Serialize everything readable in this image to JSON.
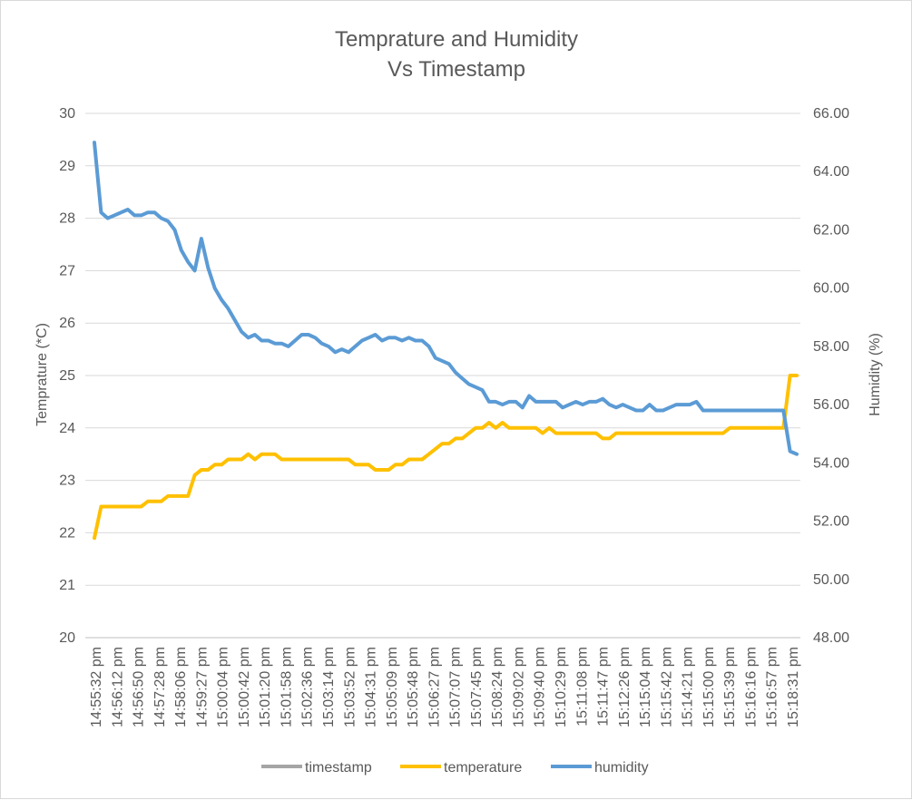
{
  "chart_data": {
    "type": "line",
    "title": [
      "Temprature and Humidity",
      "Vs Timestamp"
    ],
    "ylabel_left": "Temprature (*C)",
    "ylabel_right": "Humidity (%)",
    "ylim_left": [
      20,
      30
    ],
    "ylim_right": [
      48,
      66
    ],
    "yticks_left": [
      "20",
      "21",
      "22",
      "23",
      "24",
      "25",
      "26",
      "27",
      "28",
      "29",
      "30"
    ],
    "yticks_right": [
      "48.00",
      "50.00",
      "52.00",
      "54.00",
      "56.00",
      "58.00",
      "60.00",
      "62.00",
      "64.00",
      "66.00"
    ],
    "xtick_labels": [
      "14:55:32 pm",
      "14:56:12 pm",
      "14:56:50 pm",
      "14:57:28 pm",
      "14:58:06 pm",
      "14:59:27 pm",
      "15:00:04 pm",
      "15:00:42 pm",
      "15:01:20 pm",
      "15:01:58 pm",
      "15:02:36 pm",
      "15:03:14 pm",
      "15:03:52 pm",
      "15:04:31 pm",
      "15:05:09 pm",
      "15:05:48 pm",
      "15:06:27 pm",
      "15:07:07 pm",
      "15:07:45 pm",
      "15:08:24 pm",
      "15:09:02 pm",
      "15:09:40 pm",
      "15:10:29 pm",
      "15:11:08 pm",
      "15:11:47 pm",
      "15:12:26 pm",
      "15:15:04 pm",
      "15:15:42 pm",
      "15:14:21 pm",
      "15:15:00 pm",
      "15:15:39 pm",
      "15:16:16 pm",
      "15:16:57 pm",
      "15:18:31 pm"
    ],
    "grid": true,
    "legend_position": "bottom",
    "legend": [
      {
        "name": "timestamp",
        "color": "#a5a5a5"
      },
      {
        "name": "temperature",
        "color": "#ffc000"
      },
      {
        "name": "humidity",
        "color": "#5b9bd5"
      }
    ],
    "series": [
      {
        "name": "temperature",
        "axis": "left",
        "color": "#ffc000",
        "values": [
          21.9,
          22.5,
          22.5,
          22.5,
          22.5,
          22.5,
          22.5,
          22.5,
          22.6,
          22.6,
          22.6,
          22.7,
          22.7,
          22.7,
          22.7,
          23.1,
          23.2,
          23.2,
          23.3,
          23.3,
          23.4,
          23.4,
          23.4,
          23.5,
          23.4,
          23.5,
          23.5,
          23.5,
          23.4,
          23.4,
          23.4,
          23.4,
          23.4,
          23.4,
          23.4,
          23.4,
          23.4,
          23.4,
          23.4,
          23.3,
          23.3,
          23.3,
          23.2,
          23.2,
          23.2,
          23.3,
          23.3,
          23.4,
          23.4,
          23.4,
          23.5,
          23.6,
          23.7,
          23.7,
          23.8,
          23.8,
          23.9,
          24.0,
          24.0,
          24.1,
          24.0,
          24.1,
          24.0,
          24.0,
          24.0,
          24.0,
          24.0,
          23.9,
          24.0,
          23.9,
          23.9,
          23.9,
          23.9,
          23.9,
          23.9,
          23.9,
          23.8,
          23.8,
          23.9,
          23.9,
          23.9,
          23.9,
          23.9,
          23.9,
          23.9,
          23.9,
          23.9,
          23.9,
          23.9,
          23.9,
          23.9,
          23.9,
          23.9,
          23.9,
          23.9,
          24.0,
          24.0,
          24.0,
          24.0,
          24.0,
          24.0,
          24.0,
          24.0,
          24.0,
          25.0,
          25.0
        ]
      },
      {
        "name": "humidity",
        "axis": "right",
        "color": "#5b9bd5",
        "values": [
          65.0,
          62.6,
          62.4,
          62.5,
          62.6,
          62.7,
          62.5,
          62.5,
          62.6,
          62.6,
          62.4,
          62.3,
          62.0,
          61.3,
          60.9,
          60.6,
          61.7,
          60.7,
          60.0,
          59.6,
          59.3,
          58.9,
          58.5,
          58.3,
          58.4,
          58.2,
          58.2,
          58.1,
          58.1,
          58.0,
          58.2,
          58.4,
          58.4,
          58.3,
          58.1,
          58.0,
          57.8,
          57.9,
          57.8,
          58.0,
          58.2,
          58.3,
          58.4,
          58.2,
          58.3,
          58.3,
          58.2,
          58.3,
          58.2,
          58.2,
          58.0,
          57.6,
          57.5,
          57.4,
          57.1,
          56.9,
          56.7,
          56.6,
          56.5,
          56.1,
          56.1,
          56.0,
          56.1,
          56.1,
          55.9,
          56.3,
          56.1,
          56.1,
          56.1,
          56.1,
          55.9,
          56.0,
          56.1,
          56.0,
          56.1,
          56.1,
          56.2,
          56.0,
          55.9,
          56.0,
          55.9,
          55.8,
          55.8,
          56.0,
          55.8,
          55.8,
          55.9,
          56.0,
          56.0,
          56.0,
          56.1,
          55.8,
          55.8,
          55.8,
          55.8,
          55.8,
          55.8,
          55.8,
          55.8,
          55.8,
          55.8,
          55.8,
          55.8,
          55.8,
          54.4,
          54.3
        ]
      }
    ]
  }
}
